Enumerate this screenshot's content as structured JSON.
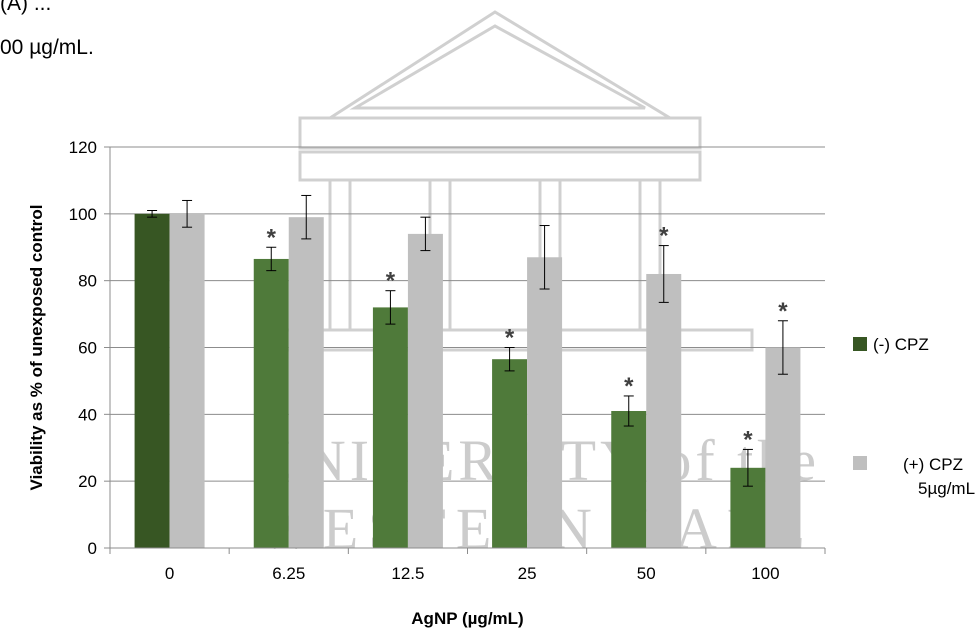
{
  "caption": {
    "line1": "(A) ... ",
    "line2": "00 µg/mL."
  },
  "watermark": {
    "line1": "UNIVERSITY of the",
    "line2": "WESTERN CAPE"
  },
  "chart_data": {
    "type": "bar",
    "categories": [
      "0",
      "6.25",
      "12.5",
      "25",
      "50",
      "100"
    ],
    "xlabel": "AgNP (µg/mL)",
    "ylabel": "Viability as % of unexposed control",
    "ylim": [
      0,
      120
    ],
    "yticks": [
      0,
      20,
      40,
      60,
      80,
      100,
      120
    ],
    "grid": true,
    "legend_position": "right",
    "series": [
      {
        "name": "(-) CPZ",
        "color": "#4f7a3a",
        "first_bar_color": "#375623",
        "values": [
          100,
          86.5,
          72,
          56.5,
          41,
          24
        ],
        "errors": [
          1,
          3.5,
          5,
          3.5,
          4.5,
          5.5
        ],
        "significant": [
          false,
          true,
          true,
          true,
          true,
          true
        ]
      },
      {
        "name": "(+) CPZ 5µg/mL",
        "color": "#bfbfbf",
        "values": [
          100,
          99,
          94,
          87,
          82,
          60
        ],
        "errors": [
          4,
          6.5,
          5,
          9.5,
          8.5,
          8
        ],
        "significant": [
          false,
          false,
          false,
          false,
          true,
          true
        ]
      }
    ],
    "significance_marker": "*"
  }
}
